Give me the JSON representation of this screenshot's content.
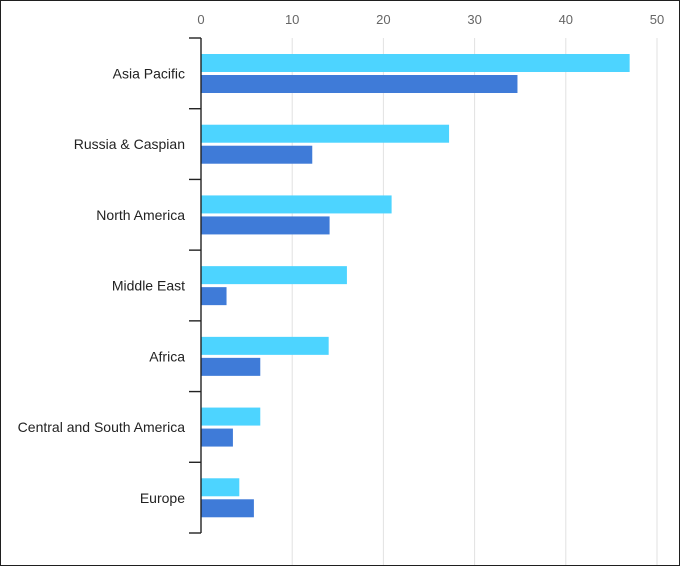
{
  "chart_data": {
    "type": "bar",
    "orientation": "horizontal",
    "categories": [
      "Asia Pacific",
      "Russia & Caspian",
      "North America",
      "Middle East",
      "Africa",
      "Central and South America",
      "Europe"
    ],
    "series": [
      {
        "color": "#4dd4ff",
        "values": [
          47,
          27.2,
          20.9,
          16,
          14,
          6.5,
          4.2
        ]
      },
      {
        "color": "#3f7bd8",
        "values": [
          34.7,
          12.2,
          14.1,
          2.8,
          6.5,
          3.5,
          5.8
        ]
      }
    ],
    "xlim": [
      0,
      50
    ],
    "xticks": [
      0,
      10,
      20,
      30,
      40,
      50
    ],
    "xaxis_position": "top",
    "grid": true,
    "legend": "none",
    "title": "",
    "xlabel": "",
    "ylabel": ""
  },
  "colors": {
    "grid": "#e2e2e2",
    "axis": "#222222",
    "tick_label": "#666666",
    "category_label": "#222222",
    "border": "#1f1f1f"
  }
}
